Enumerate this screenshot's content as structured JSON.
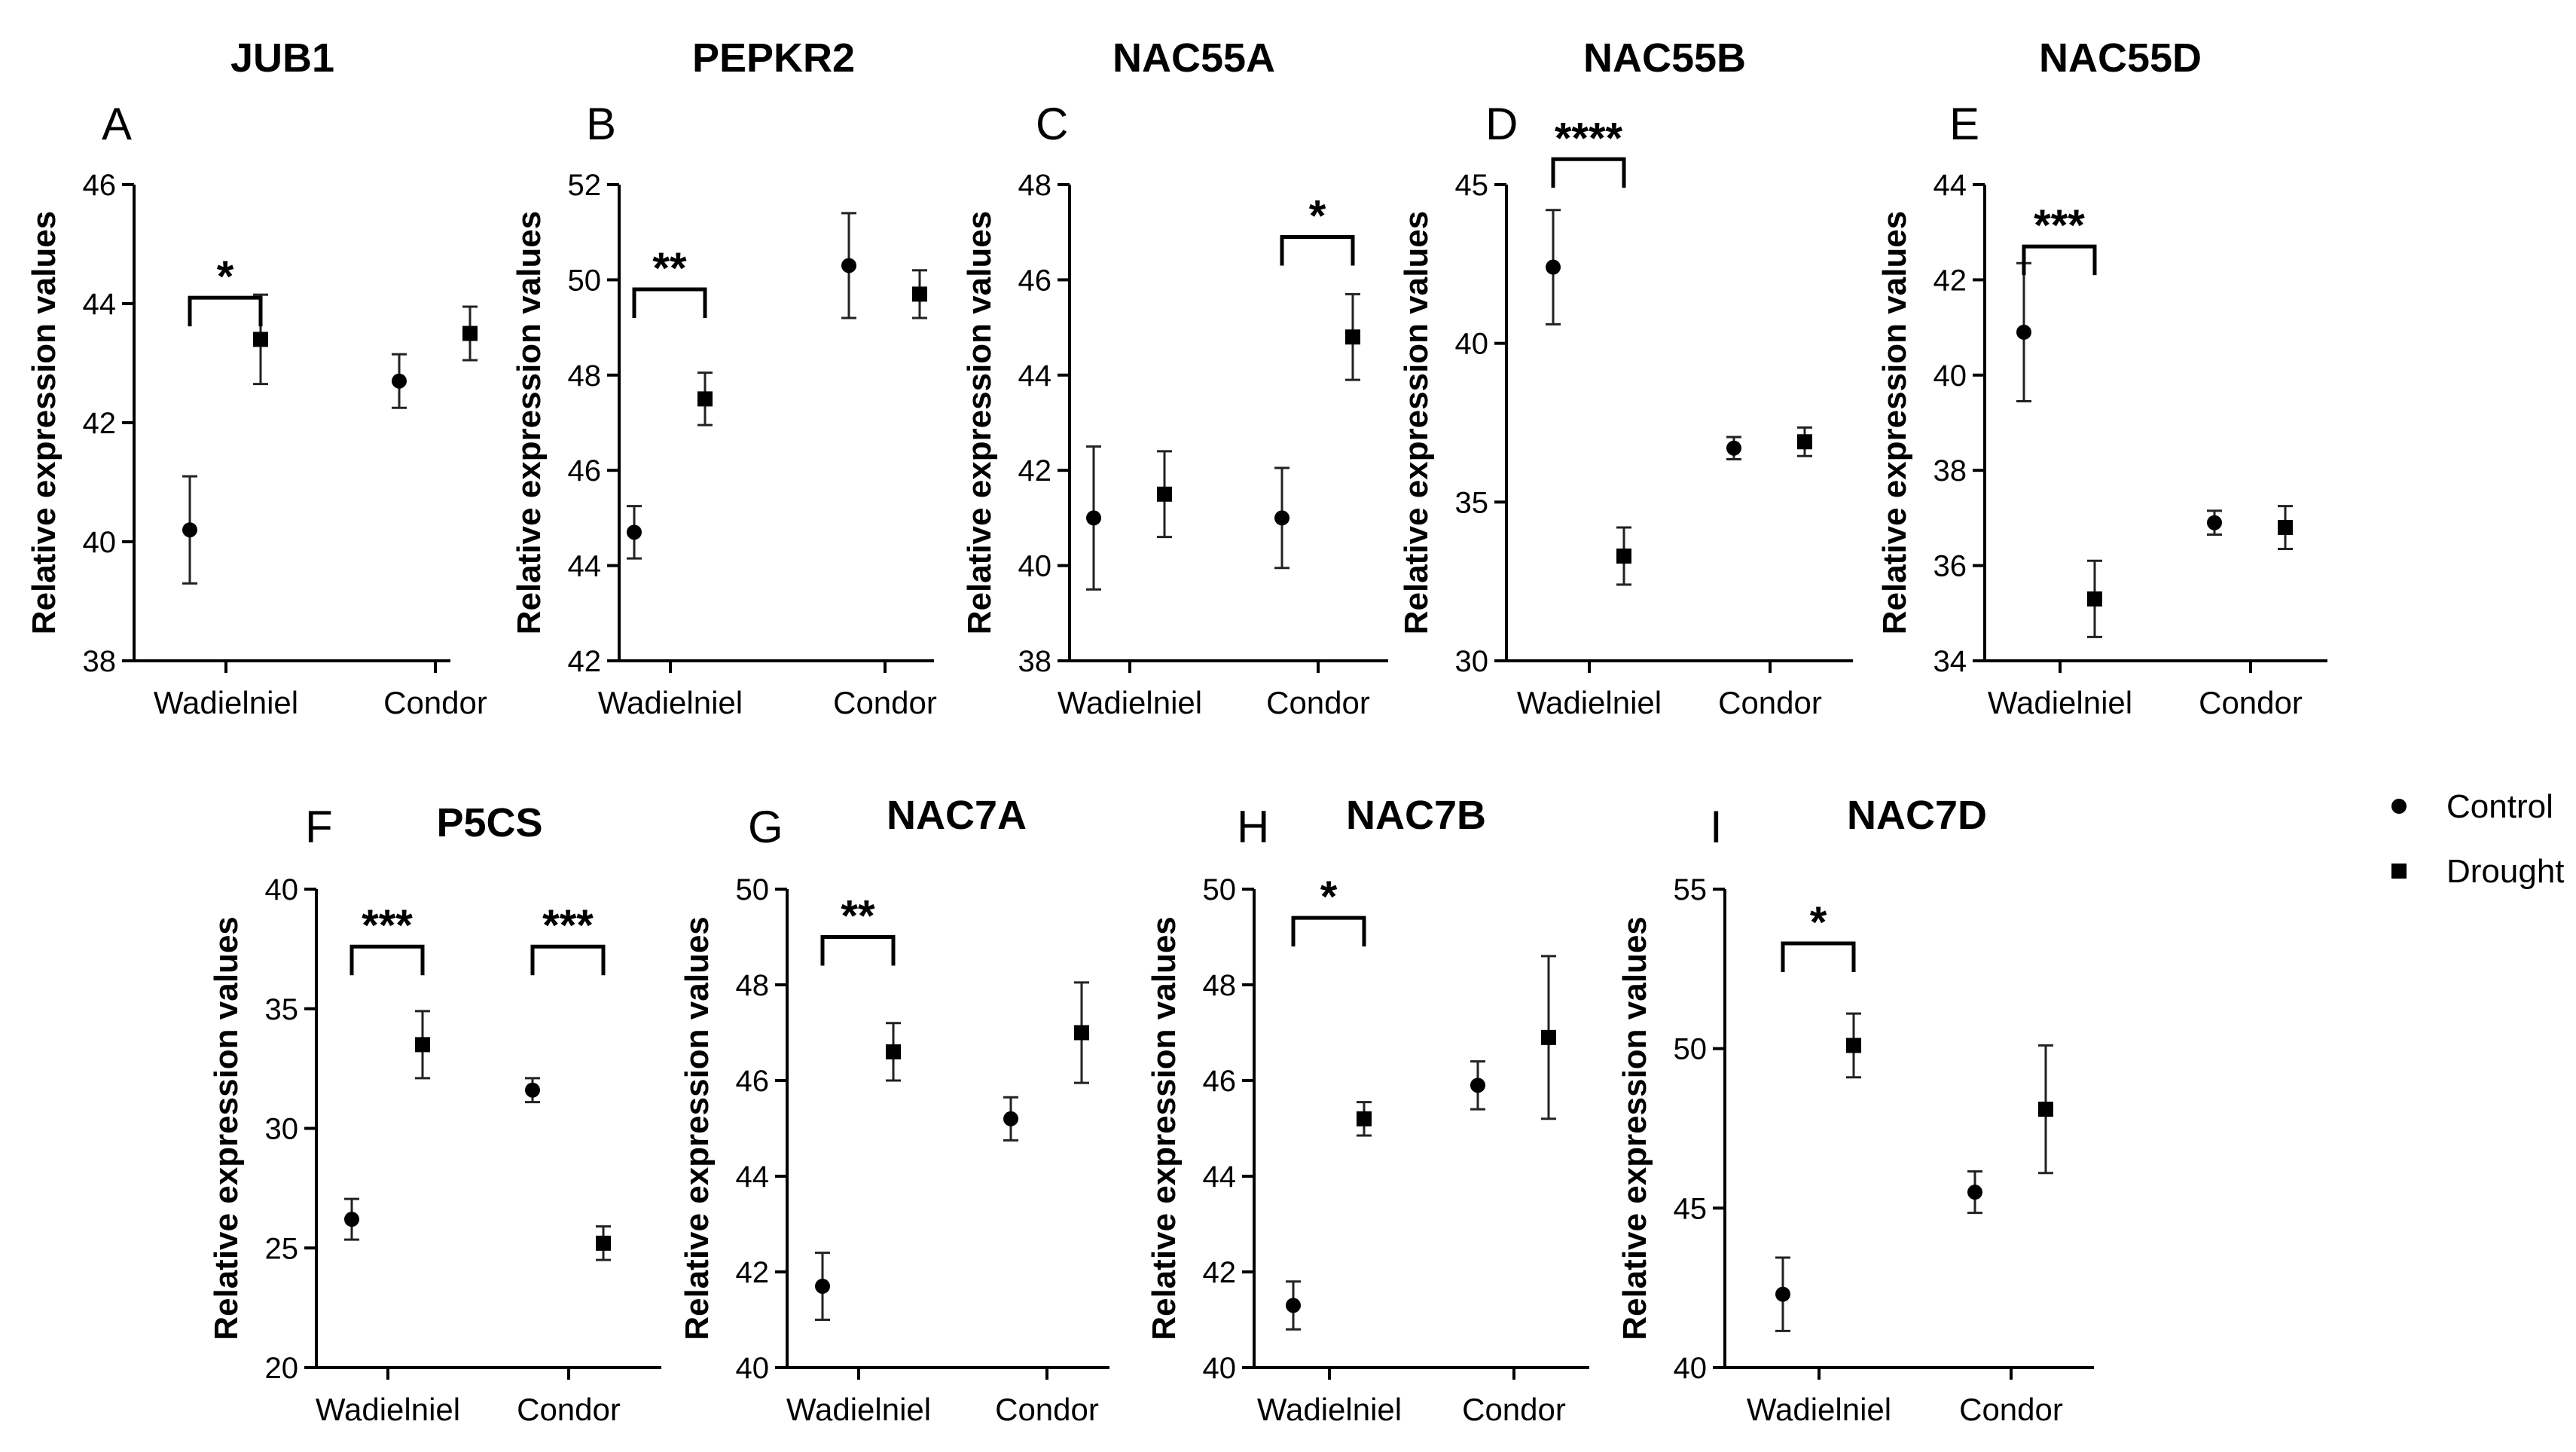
{
  "figure_type": "multi-panel point plot with error bars",
  "legend": {
    "items": [
      {
        "label": "Control",
        "marker": "circle"
      },
      {
        "label": "Drought",
        "marker": "square"
      }
    ]
  },
  "chart_data": [
    {
      "type": "scatter",
      "panel": "A",
      "title": "JUB1",
      "ylabel": "Relative expression values",
      "ylim": [
        38,
        46
      ],
      "yticks": [
        38,
        40,
        42,
        44,
        46
      ],
      "categories": [
        "Wadielniel",
        "Condor"
      ],
      "series": [
        {
          "name": "Control",
          "values": [
            40.2,
            42.7
          ],
          "errors": [
            0.9,
            0.45
          ]
        },
        {
          "name": "Drought",
          "values": [
            43.4,
            43.5
          ],
          "errors": [
            0.75,
            0.45
          ]
        }
      ],
      "significance": [
        {
          "category": "Wadielniel",
          "label": "*",
          "y": 44.1
        }
      ]
    },
    {
      "type": "scatter",
      "panel": "B",
      "title": "PEPKR2",
      "ylabel": "Relative expression values",
      "ylim": [
        42,
        52
      ],
      "yticks": [
        42,
        44,
        46,
        48,
        50,
        52
      ],
      "categories": [
        "Wadielniel",
        "Condor"
      ],
      "series": [
        {
          "name": "Control",
          "values": [
            44.7,
            50.3
          ],
          "errors": [
            0.55,
            1.1
          ]
        },
        {
          "name": "Drought",
          "values": [
            47.5,
            49.7
          ],
          "errors": [
            0.55,
            0.5
          ]
        }
      ],
      "significance": [
        {
          "category": "Wadielniel",
          "label": "**",
          "y": 49.8
        }
      ]
    },
    {
      "type": "scatter",
      "panel": "C",
      "title": "NAC55A",
      "ylabel": "Relative expression values",
      "ylim": [
        38,
        48
      ],
      "yticks": [
        38,
        40,
        42,
        44,
        46,
        48
      ],
      "categories": [
        "Wadielniel",
        "Condor"
      ],
      "series": [
        {
          "name": "Control",
          "values": [
            41.0,
            41.0
          ],
          "errors": [
            1.5,
            1.05
          ]
        },
        {
          "name": "Drought",
          "values": [
            41.5,
            44.8
          ],
          "errors": [
            0.9,
            0.9
          ]
        }
      ],
      "significance": [
        {
          "category": "Condor",
          "label": "*",
          "y": 46.9
        }
      ]
    },
    {
      "type": "scatter",
      "panel": "D",
      "title": "NAC55B",
      "ylabel": "Relative expression values",
      "ylim": [
        30,
        45
      ],
      "yticks": [
        30,
        35,
        40,
        45
      ],
      "categories": [
        "Wadielniel",
        "Condor"
      ],
      "series": [
        {
          "name": "Control",
          "values": [
            42.4,
            36.7
          ],
          "errors": [
            1.8,
            0.35
          ]
        },
        {
          "name": "Drought",
          "values": [
            33.3,
            36.9
          ],
          "errors": [
            0.9,
            0.45
          ]
        }
      ],
      "significance": [
        {
          "category": "Wadielniel",
          "label": "****",
          "y": 45.8
        }
      ]
    },
    {
      "type": "scatter",
      "panel": "E",
      "title": "NAC55D",
      "ylabel": "Relative expression values",
      "ylim": [
        34,
        44
      ],
      "yticks": [
        34,
        36,
        38,
        40,
        42,
        44
      ],
      "categories": [
        "Wadielniel",
        "Condor"
      ],
      "series": [
        {
          "name": "Control",
          "values": [
            40.9,
            36.9
          ],
          "errors": [
            1.45,
            0.25
          ]
        },
        {
          "name": "Drought",
          "values": [
            35.3,
            36.8
          ],
          "errors": [
            0.8,
            0.45
          ]
        }
      ],
      "significance": [
        {
          "category": "Wadielniel",
          "label": "***",
          "y": 42.7
        }
      ]
    },
    {
      "type": "scatter",
      "panel": "F",
      "title": "P5CS",
      "ylabel": "Relative expression values",
      "ylim": [
        20,
        40
      ],
      "yticks": [
        20,
        25,
        30,
        35,
        40
      ],
      "categories": [
        "Wadielniel",
        "Condor"
      ],
      "series": [
        {
          "name": "Control",
          "values": [
            26.2,
            31.6
          ],
          "errors": [
            0.85,
            0.5
          ]
        },
        {
          "name": "Drought",
          "values": [
            33.5,
            25.2
          ],
          "errors": [
            1.4,
            0.7
          ]
        }
      ],
      "significance": [
        {
          "category": "Wadielniel",
          "label": "***",
          "y": 37.6
        },
        {
          "category": "Condor",
          "label": "***",
          "y": 37.6
        }
      ]
    },
    {
      "type": "scatter",
      "panel": "G",
      "title": "NAC7A",
      "ylabel": "Relative expression values",
      "ylim": [
        40,
        50
      ],
      "yticks": [
        40,
        42,
        44,
        46,
        48,
        50
      ],
      "categories": [
        "Wadielniel",
        "Condor"
      ],
      "series": [
        {
          "name": "Control",
          "values": [
            41.7,
            45.2
          ],
          "errors": [
            0.7,
            0.45
          ]
        },
        {
          "name": "Drought",
          "values": [
            46.6,
            47.0
          ],
          "errors": [
            0.6,
            1.05
          ]
        }
      ],
      "significance": [
        {
          "category": "Wadielniel",
          "label": "**",
          "y": 49.0
        }
      ]
    },
    {
      "type": "scatter",
      "panel": "H",
      "title": "NAC7B",
      "ylabel": "Relative expression values",
      "ylim": [
        40,
        50
      ],
      "yticks": [
        40,
        42,
        44,
        46,
        48,
        50
      ],
      "categories": [
        "Wadielniel",
        "Condor"
      ],
      "series": [
        {
          "name": "Control",
          "values": [
            41.3,
            45.9
          ],
          "errors": [
            0.5,
            0.5
          ]
        },
        {
          "name": "Drought",
          "values": [
            45.2,
            46.9
          ],
          "errors": [
            0.35,
            1.7
          ]
        }
      ],
      "significance": [
        {
          "category": "Wadielniel",
          "label": "*",
          "y": 49.4
        }
      ]
    },
    {
      "type": "scatter",
      "panel": "I",
      "title": "NAC7D",
      "ylabel": "Relative expression values",
      "ylim": [
        40,
        55
      ],
      "yticks": [
        40,
        45,
        50,
        55
      ],
      "categories": [
        "Wadielniel",
        "Condor"
      ],
      "series": [
        {
          "name": "Control",
          "values": [
            42.3,
            45.5
          ],
          "errors": [
            1.15,
            0.65
          ]
        },
        {
          "name": "Drought",
          "values": [
            50.1,
            48.1
          ],
          "errors": [
            1.0,
            2.0
          ]
        }
      ],
      "significance": [
        {
          "category": "Wadielniel",
          "label": "*",
          "y": 53.3
        }
      ]
    }
  ]
}
